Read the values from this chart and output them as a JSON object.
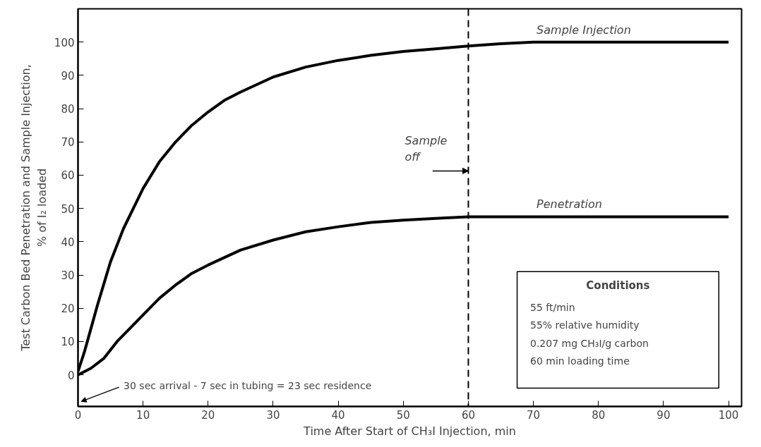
{
  "chart_data": {
    "type": "line",
    "xlabel": "Time After Start of CH₃I Injection, min",
    "ylabel": "Test Carbon Bed Penetration and Sample Injection,\n% of I₂ loaded",
    "xlim": [
      0,
      102
    ],
    "ylim": [
      -9.5,
      110
    ],
    "xticks": [
      0,
      10,
      20,
      30,
      40,
      50,
      60,
      70,
      80,
      90,
      100
    ],
    "yticks": [
      0,
      10,
      20,
      30,
      40,
      50,
      60,
      70,
      80,
      90,
      100
    ],
    "grid": false,
    "legend": false,
    "marker": "none",
    "line_style": "solid",
    "series": [
      {
        "name": "Sample Injection",
        "color": "#000000",
        "x": [
          0,
          1,
          2,
          3,
          5,
          7,
          10,
          12.5,
          15,
          17.5,
          20,
          22.5,
          25,
          30,
          35,
          40,
          45,
          50,
          55,
          60,
          65,
          70,
          80,
          90,
          100
        ],
        "values": [
          1,
          7,
          14,
          21,
          34,
          44,
          56,
          64,
          70,
          75,
          79,
          82.5,
          85,
          89.5,
          92.5,
          94.5,
          96,
          97.2,
          98,
          98.8,
          99.5,
          100,
          100,
          100,
          100
        ]
      },
      {
        "name": "Penetration",
        "color": "#000000",
        "x": [
          0,
          1,
          2,
          4,
          6,
          8,
          10,
          12.5,
          15,
          17.5,
          20,
          25,
          30,
          35,
          40,
          45,
          50,
          55,
          60,
          70,
          80,
          90,
          100
        ],
        "values": [
          0,
          1,
          2,
          5,
          10,
          14,
          18,
          23,
          27,
          30.5,
          33,
          37.5,
          40.5,
          43,
          44.5,
          45.8,
          46.5,
          47,
          47.5,
          47.5,
          47.5,
          47.5,
          47.5
        ]
      }
    ],
    "ref_lines": [
      {
        "axis": "x",
        "value": 60,
        "label": "Sample\noff",
        "line_style": "dashed",
        "color": "#000000"
      }
    ],
    "annotations": [
      "30 sec arrival - 7 sec in tubing = 23 sec residence",
      "Conditions",
      "55 ft/min",
      "55% relative humidity",
      "0.207 mg CH₃I/g carbon",
      "60 min loading time"
    ]
  }
}
